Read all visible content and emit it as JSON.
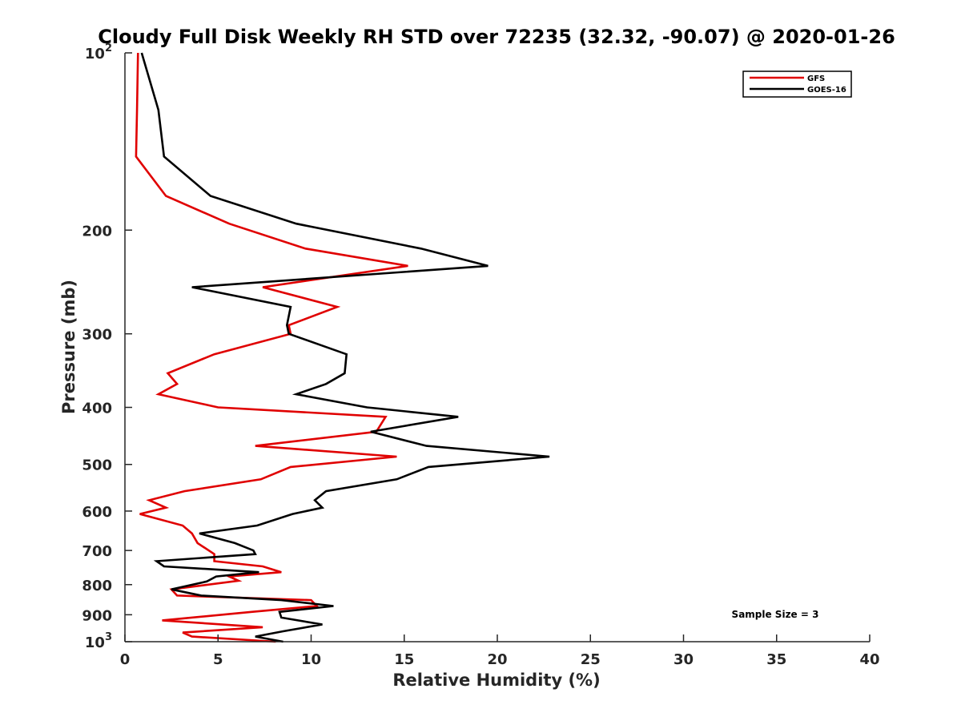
{
  "chart_data": {
    "type": "line",
    "title": "Cloudy Full Disk Weekly RH STD over 72235 (32.32, -90.07) @ 2020-01-26",
    "xlabel": "Relative Humidity (%)",
    "ylabel": "Pressure (mb)",
    "xlim": [
      0,
      40
    ],
    "ylim": [
      100,
      1000
    ],
    "yscale": "log",
    "yreversed": true,
    "grid": false,
    "legend_location": "top-right",
    "x_ticks": [
      {
        "value": 0,
        "label": "0"
      },
      {
        "value": 5,
        "label": "5"
      },
      {
        "value": 10,
        "label": "10"
      },
      {
        "value": 15,
        "label": "15"
      },
      {
        "value": 20,
        "label": "20"
      },
      {
        "value": 25,
        "label": "25"
      },
      {
        "value": 30,
        "label": "30"
      },
      {
        "value": 35,
        "label": "35"
      },
      {
        "value": 40,
        "label": "40"
      }
    ],
    "y_ticks": [
      {
        "value": 100,
        "base": "10",
        "exp": "2"
      },
      {
        "value": 200,
        "label": "200"
      },
      {
        "value": 300,
        "label": "300"
      },
      {
        "value": 400,
        "label": "400"
      },
      {
        "value": 500,
        "label": "500"
      },
      {
        "value": 600,
        "label": "600"
      },
      {
        "value": 700,
        "label": "700"
      },
      {
        "value": 800,
        "label": "800"
      },
      {
        "value": 900,
        "label": "900"
      },
      {
        "value": 1000,
        "base": "10",
        "exp": "3"
      }
    ],
    "annotation": "Sample Size = 3",
    "series": [
      {
        "name": "GFS",
        "color": "#e00000",
        "points": [
          [
            0.7,
            100
          ],
          [
            0.65,
            125
          ],
          [
            0.6,
            150
          ],
          [
            2.2,
            175
          ],
          [
            5.6,
            195
          ],
          [
            9.7,
            215
          ],
          [
            15.2,
            230
          ],
          [
            7.4,
            250
          ],
          [
            11.4,
            270
          ],
          [
            8.8,
            290
          ],
          [
            8.9,
            300
          ],
          [
            4.8,
            325
          ],
          [
            2.3,
            350
          ],
          [
            2.8,
            365
          ],
          [
            1.8,
            380
          ],
          [
            5.0,
            400
          ],
          [
            14.0,
            415
          ],
          [
            13.5,
            440
          ],
          [
            7.0,
            465
          ],
          [
            14.6,
            485
          ],
          [
            8.9,
            505
          ],
          [
            7.3,
            530
          ],
          [
            3.2,
            555
          ],
          [
            1.3,
            575
          ],
          [
            2.2,
            592
          ],
          [
            0.8,
            607
          ],
          [
            3.1,
            635
          ],
          [
            3.6,
            655
          ],
          [
            3.9,
            680
          ],
          [
            4.8,
            710
          ],
          [
            4.8,
            730
          ],
          [
            7.4,
            745
          ],
          [
            8.4,
            762
          ],
          [
            5.6,
            775
          ],
          [
            6.1,
            788
          ],
          [
            2.5,
            815
          ],
          [
            2.8,
            835
          ],
          [
            10.0,
            850
          ],
          [
            10.3,
            870
          ],
          [
            6.8,
            890
          ],
          [
            2.0,
            920
          ],
          [
            7.4,
            945
          ],
          [
            3.1,
            965
          ],
          [
            3.6,
            980
          ],
          [
            8.1,
            1000
          ]
        ]
      },
      {
        "name": "GOES-16",
        "color": "#000000",
        "points": [
          [
            0.9,
            100
          ],
          [
            1.8,
            125
          ],
          [
            2.1,
            150
          ],
          [
            4.6,
            175
          ],
          [
            9.2,
            195
          ],
          [
            15.9,
            215
          ],
          [
            19.5,
            230
          ],
          [
            3.6,
            250
          ],
          [
            8.9,
            270
          ],
          [
            8.7,
            290
          ],
          [
            8.8,
            300
          ],
          [
            11.9,
            325
          ],
          [
            11.8,
            350
          ],
          [
            10.8,
            365
          ],
          [
            9.2,
            380
          ],
          [
            13.0,
            400
          ],
          [
            17.9,
            415
          ],
          [
            13.2,
            440
          ],
          [
            16.2,
            465
          ],
          [
            22.8,
            485
          ],
          [
            16.3,
            505
          ],
          [
            14.6,
            530
          ],
          [
            10.8,
            555
          ],
          [
            10.2,
            575
          ],
          [
            10.6,
            592
          ],
          [
            9.0,
            607
          ],
          [
            7.1,
            635
          ],
          [
            4.0,
            655
          ],
          [
            5.9,
            680
          ],
          [
            6.9,
            700
          ],
          [
            7.0,
            710
          ],
          [
            1.7,
            730
          ],
          [
            2.1,
            745
          ],
          [
            7.2,
            762
          ],
          [
            4.9,
            775
          ],
          [
            4.4,
            790
          ],
          [
            2.5,
            815
          ],
          [
            4.1,
            835
          ],
          [
            8.4,
            850
          ],
          [
            11.2,
            870
          ],
          [
            8.3,
            890
          ],
          [
            8.4,
            910
          ],
          [
            10.6,
            935
          ],
          [
            8.5,
            960
          ],
          [
            7.0,
            980
          ],
          [
            8.5,
            1000
          ]
        ]
      }
    ]
  }
}
